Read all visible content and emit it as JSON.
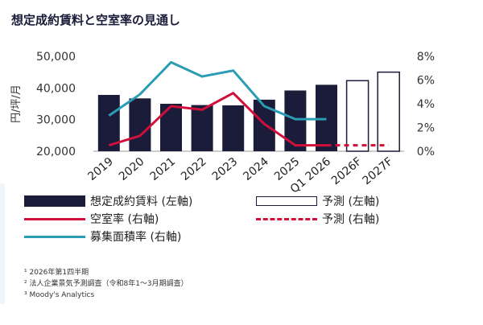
{
  "title": "想定成約賃料と空室率の見通し",
  "chart_data": {
    "type": "bar",
    "categories": [
      "2019",
      "2020",
      "2021",
      "2022",
      "2023",
      "2024",
      "2025",
      "Q1 2026",
      "2026F",
      "2027F"
    ],
    "ylabel": "円/坪/月",
    "y_left": {
      "lim": [
        20000,
        50000
      ],
      "ticks": [
        "20,000",
        "30,000",
        "40,000",
        "50,000"
      ],
      "tick_values": [
        20000,
        30000,
        40000,
        50000
      ]
    },
    "y_right": {
      "lim": [
        0,
        8
      ],
      "ticks": [
        "0%",
        "2%",
        "4%",
        "6%",
        "8%"
      ],
      "tick_values": [
        0,
        2,
        4,
        6,
        8
      ]
    },
    "series": [
      {
        "name": "想定成約賃料 (左軸)",
        "type": "bar",
        "axis": "left",
        "values": [
          37800,
          36700,
          35000,
          34600,
          34500,
          36300,
          39200,
          41000,
          null,
          null
        ]
      },
      {
        "name": "予測 (左軸)",
        "type": "bar-outline",
        "axis": "left",
        "values": [
          null,
          null,
          null,
          null,
          null,
          null,
          null,
          null,
          42300,
          45000
        ]
      },
      {
        "name": "空室率 (右軸)",
        "type": "line",
        "axis": "right",
        "values": [
          0.5,
          1.3,
          3.8,
          3.5,
          4.9,
          2.3,
          0.5,
          0.5,
          null,
          null
        ]
      },
      {
        "name": "予測 (右軸)",
        "type": "line-dashed",
        "axis": "right",
        "values": [
          null,
          null,
          null,
          null,
          null,
          null,
          null,
          0.5,
          0.5,
          0.5
        ]
      },
      {
        "name": "募集面積率 (右軸)",
        "type": "line",
        "axis": "right",
        "values": [
          3.0,
          4.8,
          7.5,
          6.3,
          6.8,
          3.8,
          2.7,
          2.7,
          null,
          null
        ]
      }
    ],
    "colors": {
      "bar": "#1b1b3a",
      "vacancy": "#d0103a",
      "recruit": "#2a9db5"
    },
    "grid": false,
    "legend_position": "bottom"
  },
  "footnotes": [
    "¹ 2026年第1四半期",
    "² 法人企業景気予測調査（令和8年1〜3月期調査）",
    "³ Moody's Analytics"
  ]
}
